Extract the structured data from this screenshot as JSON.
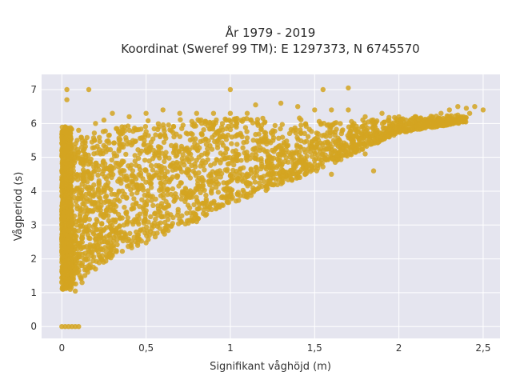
{
  "chart_data": {
    "type": "scatter",
    "title_line1": "År 1979 - 2019",
    "title_line2": "Koordinat (Sweref 99 TM): E 1297373, N 6745570",
    "xlabel": "Signifikant våghöjd (m)",
    "ylabel": "Vågperiod (s)",
    "xlim": [
      -0.12,
      2.6
    ],
    "ylim": [
      -0.35,
      7.45
    ],
    "x_ticks": [
      0,
      0.5,
      1,
      1.5,
      2,
      2.5
    ],
    "x_tick_labels": [
      "0",
      "0,5",
      "1",
      "1,5",
      "2",
      "2,5"
    ],
    "y_ticks": [
      0,
      1,
      2,
      3,
      4,
      5,
      6,
      7
    ],
    "y_tick_labels": [
      "0",
      "1",
      "2",
      "3",
      "4",
      "5",
      "6",
      "7"
    ],
    "grid": true,
    "colors": {
      "marker": "#d4a521",
      "plot_background": "#e5e5ef",
      "grid": "#ffffff"
    },
    "points": [
      [
        0.0,
        0.0
      ],
      [
        0.02,
        0.0
      ],
      [
        0.04,
        0.0
      ],
      [
        0.06,
        0.0
      ],
      [
        0.08,
        0.0
      ],
      [
        0.1,
        0.0
      ],
      [
        0.03,
        7.0
      ],
      [
        0.03,
        6.7
      ],
      [
        0.16,
        7.0
      ],
      [
        0.02,
        5.9
      ],
      [
        0.05,
        5.5
      ],
      [
        0.1,
        5.8
      ],
      [
        0.2,
        6.0
      ],
      [
        0.25,
        6.1
      ],
      [
        0.3,
        6.3
      ],
      [
        0.4,
        6.2
      ],
      [
        0.5,
        6.3
      ],
      [
        0.6,
        6.4
      ],
      [
        0.7,
        6.3
      ],
      [
        0.8,
        6.3
      ],
      [
        0.9,
        6.3
      ],
      [
        1.0,
        7.0
      ],
      [
        1.0,
        6.3
      ],
      [
        1.1,
        6.3
      ],
      [
        1.15,
        6.55
      ],
      [
        1.3,
        6.6
      ],
      [
        1.4,
        6.5
      ],
      [
        1.5,
        6.4
      ],
      [
        1.55,
        7.0
      ],
      [
        1.7,
        7.05
      ],
      [
        1.6,
        6.4
      ],
      [
        1.7,
        6.4
      ],
      [
        1.8,
        6.2
      ],
      [
        1.9,
        6.3
      ],
      [
        2.0,
        6.2
      ],
      [
        2.1,
        6.2
      ],
      [
        2.2,
        6.2
      ],
      [
        2.25,
        6.3
      ],
      [
        2.3,
        6.4
      ],
      [
        2.35,
        6.5
      ],
      [
        2.4,
        6.45
      ],
      [
        2.45,
        6.5
      ],
      [
        2.5,
        6.4
      ],
      [
        2.42,
        6.3
      ],
      [
        2.35,
        6.25
      ],
      [
        2.2,
        6.0
      ],
      [
        1.8,
        5.1
      ],
      [
        1.85,
        4.6
      ],
      [
        1.6,
        4.5
      ],
      [
        1.5,
        4.8
      ],
      [
        1.4,
        4.4
      ],
      [
        1.25,
        4.2
      ],
      [
        1.1,
        3.9
      ],
      [
        0.95,
        3.6
      ],
      [
        0.8,
        3.1
      ],
      [
        0.6,
        2.8
      ],
      [
        0.45,
        2.4
      ],
      [
        0.3,
        2.1
      ],
      [
        0.2,
        1.7
      ],
      [
        0.12,
        1.3
      ],
      [
        0.08,
        1.05
      ],
      [
        0.05,
        1.1
      ],
      [
        0.03,
        1.3
      ],
      [
        0.0,
        1.3
      ],
      [
        0.0,
        1.9
      ],
      [
        0.0,
        3.0
      ],
      [
        0.0,
        4.0
      ],
      [
        0.0,
        4.6
      ],
      [
        0.0,
        5.2
      ]
    ]
  }
}
